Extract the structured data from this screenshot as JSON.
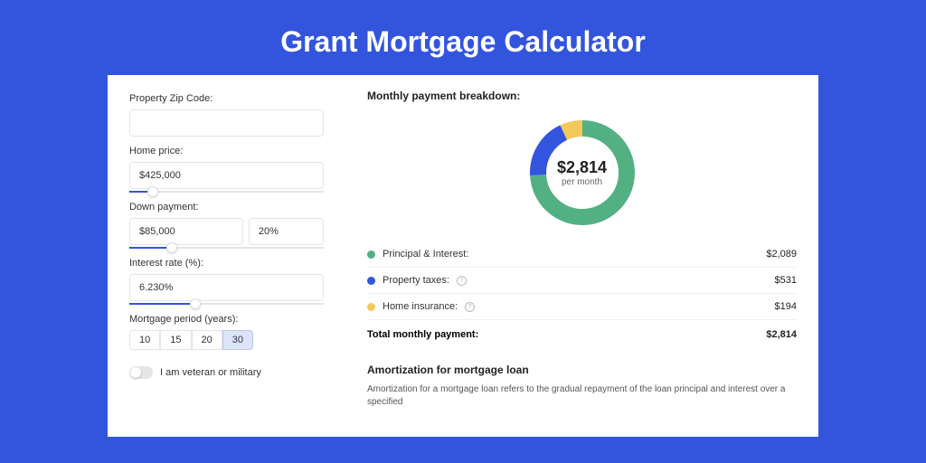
{
  "page": {
    "title": "Grant Mortgage Calculator",
    "background_color": "#3355dd",
    "panel_background": "#ffffff"
  },
  "form": {
    "zip_label": "Property Zip Code:",
    "zip_value": "",
    "home_price_label": "Home price:",
    "home_price_value": "$425,000",
    "home_price_slider_pct": 12,
    "down_payment_label": "Down payment:",
    "down_payment_value": "$85,000",
    "down_payment_pct_value": "20%",
    "down_payment_slider_pct": 22,
    "interest_label": "Interest rate (%):",
    "interest_value": "6.230%",
    "interest_slider_pct": 34,
    "period_label": "Mortgage period (years):",
    "period_options": [
      "10",
      "15",
      "20",
      "30"
    ],
    "period_selected_index": 3,
    "veteran_label": "I am veteran or military",
    "veteran_on": false
  },
  "breakdown": {
    "title": "Monthly payment breakdown:",
    "donut": {
      "amount": "$2,814",
      "sub": "per month",
      "slices": [
        {
          "label": "Principal & Interest",
          "value": 2089,
          "color": "#53b083",
          "start_deg": 0,
          "end_deg": 267
        },
        {
          "label": "Property taxes",
          "value": 531,
          "color": "#3355dd",
          "start_deg": 267,
          "end_deg": 335
        },
        {
          "label": "Home insurance",
          "value": 194,
          "color": "#f3c95b",
          "start_deg": 335,
          "end_deg": 360
        }
      ],
      "thickness": 18,
      "background": "#ffffff"
    },
    "rows": [
      {
        "dot_color": "#53b083",
        "label": "Principal & Interest:",
        "has_info": false,
        "value": "$2,089"
      },
      {
        "dot_color": "#3355dd",
        "label": "Property taxes:",
        "has_info": true,
        "value": "$531"
      },
      {
        "dot_color": "#f3c95b",
        "label": "Home insurance:",
        "has_info": true,
        "value": "$194"
      }
    ],
    "total_label": "Total monthly payment:",
    "total_value": "$2,814"
  },
  "amortization": {
    "title": "Amortization for mortgage loan",
    "text": "Amortization for a mortgage loan refers to the gradual repayment of the loan principal and interest over a specified"
  }
}
